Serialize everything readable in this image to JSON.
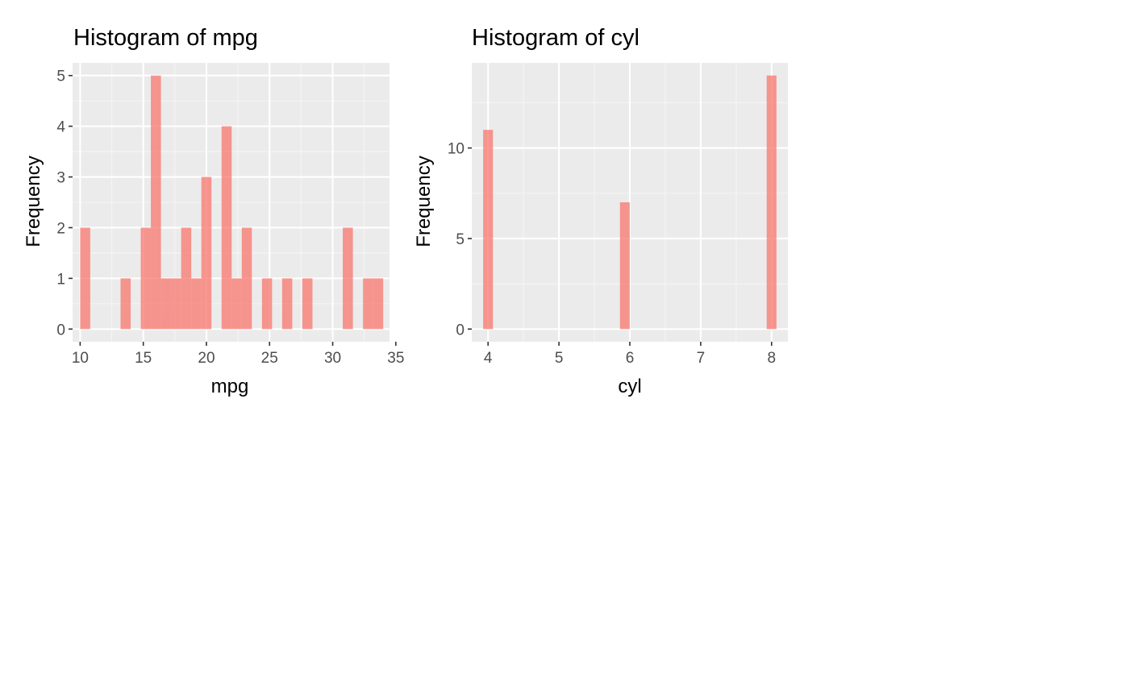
{
  "colors": {
    "panel_background": "#EBEBEB",
    "grid_major": "#FFFFFF",
    "grid_minor": "#F5F5F5",
    "bar_fill": "#F8766D",
    "bar_opacity": 0.75,
    "tick_color": "#333333",
    "tick_label_color": "#4D4D4D"
  },
  "chart_data": [
    {
      "type": "bar",
      "subtype": "histogram",
      "title": "Histogram of mpg",
      "xlabel": "mpg",
      "ylabel": "Frequency",
      "xlim": [
        9.4,
        34.5
      ],
      "ylim": [
        -0.25,
        5.25
      ],
      "x_ticks": [
        10,
        15,
        20,
        25,
        30,
        35
      ],
      "y_ticks": [
        0,
        1,
        2,
        3,
        4,
        5
      ],
      "grid": true,
      "bin_width": 0.8,
      "bins": [
        {
          "center": 10.4,
          "count": 2
        },
        {
          "center": 11.2,
          "count": 0
        },
        {
          "center": 12.0,
          "count": 0
        },
        {
          "center": 12.8,
          "count": 0
        },
        {
          "center": 13.6,
          "count": 1
        },
        {
          "center": 14.4,
          "count": 0
        },
        {
          "center": 15.2,
          "count": 2
        },
        {
          "center": 16.0,
          "count": 5
        },
        {
          "center": 16.8,
          "count": 1
        },
        {
          "center": 17.6,
          "count": 1
        },
        {
          "center": 18.4,
          "count": 2
        },
        {
          "center": 19.2,
          "count": 1
        },
        {
          "center": 20.0,
          "count": 3
        },
        {
          "center": 20.8,
          "count": 0
        },
        {
          "center": 21.6,
          "count": 4
        },
        {
          "center": 22.4,
          "count": 1
        },
        {
          "center": 23.2,
          "count": 2
        },
        {
          "center": 24.0,
          "count": 0
        },
        {
          "center": 24.8,
          "count": 1
        },
        {
          "center": 25.6,
          "count": 0
        },
        {
          "center": 26.4,
          "count": 1
        },
        {
          "center": 27.2,
          "count": 0
        },
        {
          "center": 28.0,
          "count": 1
        },
        {
          "center": 28.8,
          "count": 0
        },
        {
          "center": 29.6,
          "count": 0
        },
        {
          "center": 30.4,
          "count": 0
        },
        {
          "center": 31.2,
          "count": 2
        },
        {
          "center": 32.0,
          "count": 0
        },
        {
          "center": 32.8,
          "count": 1
        },
        {
          "center": 33.6,
          "count": 1
        }
      ]
    },
    {
      "type": "bar",
      "subtype": "histogram",
      "title": "Histogram of cyl",
      "xlabel": "cyl",
      "ylabel": "Frequency",
      "xlim": [
        3.77,
        8.23
      ],
      "ylim": [
        -0.7,
        14.7
      ],
      "x_ticks": [
        4,
        5,
        6,
        7,
        8
      ],
      "y_ticks": [
        0,
        5,
        10
      ],
      "grid": true,
      "bin_width": 0.138,
      "bins": [
        {
          "center": 4.0,
          "count": 11
        },
        {
          "center": 5.93,
          "count": 7
        },
        {
          "center": 8.0,
          "count": 14
        }
      ]
    }
  ]
}
